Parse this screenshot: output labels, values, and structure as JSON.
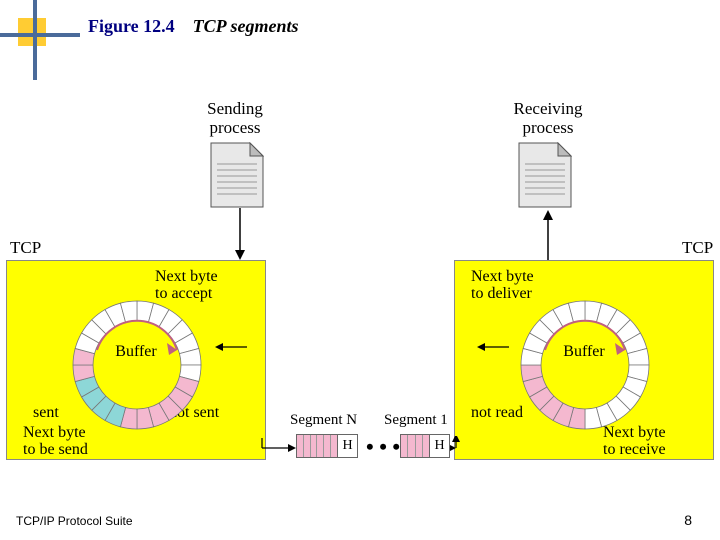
{
  "header": {
    "figure_label": "Figure 12.4",
    "figure_title": "TCP segments"
  },
  "footer": {
    "left": "TCP/IP Protocol Suite",
    "page": "8"
  },
  "decor": {
    "square_fill": "#ffcc33",
    "line_color": "#4a6b9a"
  },
  "labels": {
    "sending": "Sending\nprocess",
    "receiving": "Receiving\nprocess",
    "tcp": "TCP",
    "buffer": "Buffer",
    "next_accept": "Next byte\nto accept",
    "not_sent": "not sent",
    "sent": "sent",
    "next_send": "Next byte\nto be send",
    "next_deliver": "Next byte\nto deliver",
    "not_read": "not read",
    "next_receive": "Next byte\nto receive",
    "segmentN": "Segment N",
    "segment1": "Segment 1",
    "dots": "• • •",
    "H": "H"
  },
  "colors": {
    "buffer_bg": "#ffff00",
    "seg_empty": "#ffffff",
    "seg_pink": "#f4b8cf",
    "seg_cyan": "#8dd7d7",
    "doc_body": "#e8e8e8",
    "doc_fold": "#bcbcbc",
    "arc_arrow": "#c06080"
  }
}
